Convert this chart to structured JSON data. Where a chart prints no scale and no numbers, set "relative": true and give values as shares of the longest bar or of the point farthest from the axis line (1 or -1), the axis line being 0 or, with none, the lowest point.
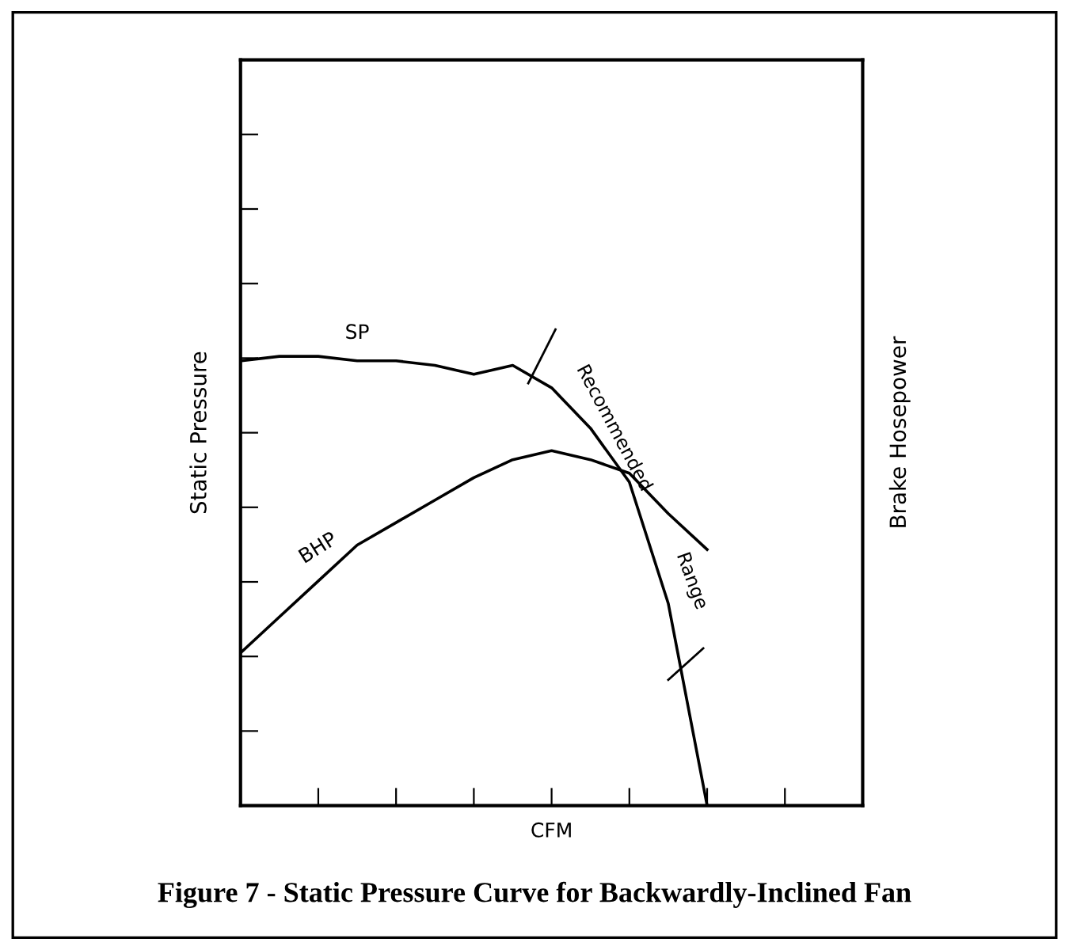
{
  "chart_data": {
    "type": "line",
    "title": "Figure 7 - Static Pressure Curve for Backwardly-Inclined Fan",
    "xlabel": "CFM",
    "ylabel": "Static Pressure",
    "y2label": "Brake Hosepower",
    "relative": true,
    "legend": false,
    "marker": "none",
    "line_style": "solid",
    "grid": false,
    "categories": [
      null,
      null,
      null,
      null,
      null,
      null,
      null,
      null,
      null,
      null,
      null,
      null,
      null,
      null,
      null,
      null,
      null
    ],
    "series": [
      {
        "name": "SP",
        "color": "#000000",
        "values": [
          0.99,
          1.0,
          1.0,
          0.99,
          0.99,
          0.98,
          0.96,
          0.98,
          0.93,
          0.84,
          0.72,
          0.45,
          0,
          null,
          null,
          null,
          null
        ]
      },
      {
        "name": "BHP",
        "color": "#000000",
        "values": [
          0.34,
          0.42,
          0.5,
          0.58,
          0.63,
          0.68,
          0.73,
          0.77,
          0.79,
          0.77,
          0.74,
          0.65,
          0.57,
          null,
          null,
          null,
          null
        ]
      }
    ],
    "annotations": [
      "Recommended",
      "Range"
    ]
  }
}
